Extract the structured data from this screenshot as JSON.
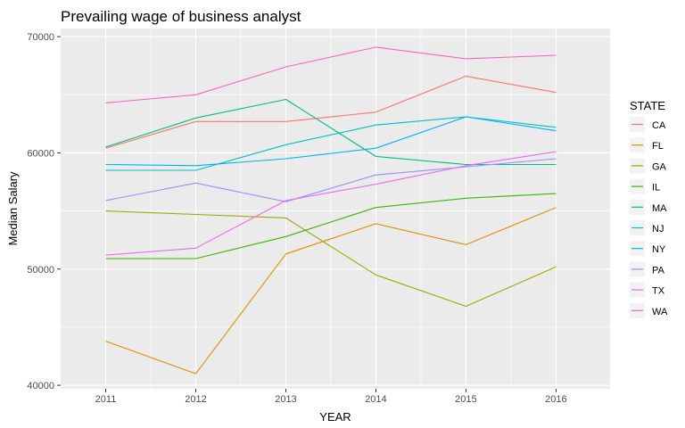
{
  "chart_data": {
    "type": "line",
    "title": "Prevailing wage of business analyst",
    "xlabel": "YEAR",
    "ylabel": "Median Salary",
    "x": [
      2011,
      2012,
      2013,
      2014,
      2015,
      2016
    ],
    "x_tick_labels": [
      "2011",
      "2012",
      "2013",
      "2014",
      "2015",
      "2016"
    ],
    "xlim": [
      2010.5,
      2016.6
    ],
    "ylim": [
      39700,
      70700
    ],
    "y_ticks": [
      40000,
      50000,
      60000,
      70000
    ],
    "y_tick_labels": [
      "40000",
      "50000",
      "60000",
      "70000"
    ],
    "grid": true,
    "legend": {
      "title": "STATE",
      "position": "right"
    },
    "series": [
      {
        "name": "CA",
        "color": "#F8766D",
        "values": [
          60400,
          62700,
          62700,
          63500,
          66600,
          65200
        ]
      },
      {
        "name": "FL",
        "color": "#D89000",
        "values": [
          43800,
          41000,
          51300,
          53900,
          52100,
          55300
        ]
      },
      {
        "name": "GA",
        "color": "#A3A500",
        "values": [
          55000,
          54700,
          54400,
          49500,
          46800,
          50200
        ]
      },
      {
        "name": "IL",
        "color": "#39B600",
        "values": [
          50900,
          50900,
          52800,
          55300,
          56100,
          56500
        ]
      },
      {
        "name": "MA",
        "color": "#00BF7D",
        "values": [
          60500,
          63000,
          64600,
          59700,
          59000,
          59000
        ]
      },
      {
        "name": "NJ",
        "color": "#00BFC4",
        "values": [
          58500,
          58500,
          60700,
          62400,
          63100,
          62200
        ]
      },
      {
        "name": "NY",
        "color": "#00B0F6",
        "values": [
          59000,
          58900,
          59500,
          60400,
          63100,
          61900
        ]
      },
      {
        "name": "PA",
        "color": "#9590FF",
        "values": [
          55900,
          57400,
          55800,
          58100,
          58800,
          59500
        ]
      },
      {
        "name": "TX",
        "color": "#E76BF3",
        "values": [
          51200,
          51800,
          55900,
          57300,
          58900,
          60100
        ]
      },
      {
        "name": "WA",
        "color": "#FF62BC",
        "values": [
          64300,
          65000,
          67400,
          69100,
          68100,
          68400
        ]
      }
    ]
  }
}
